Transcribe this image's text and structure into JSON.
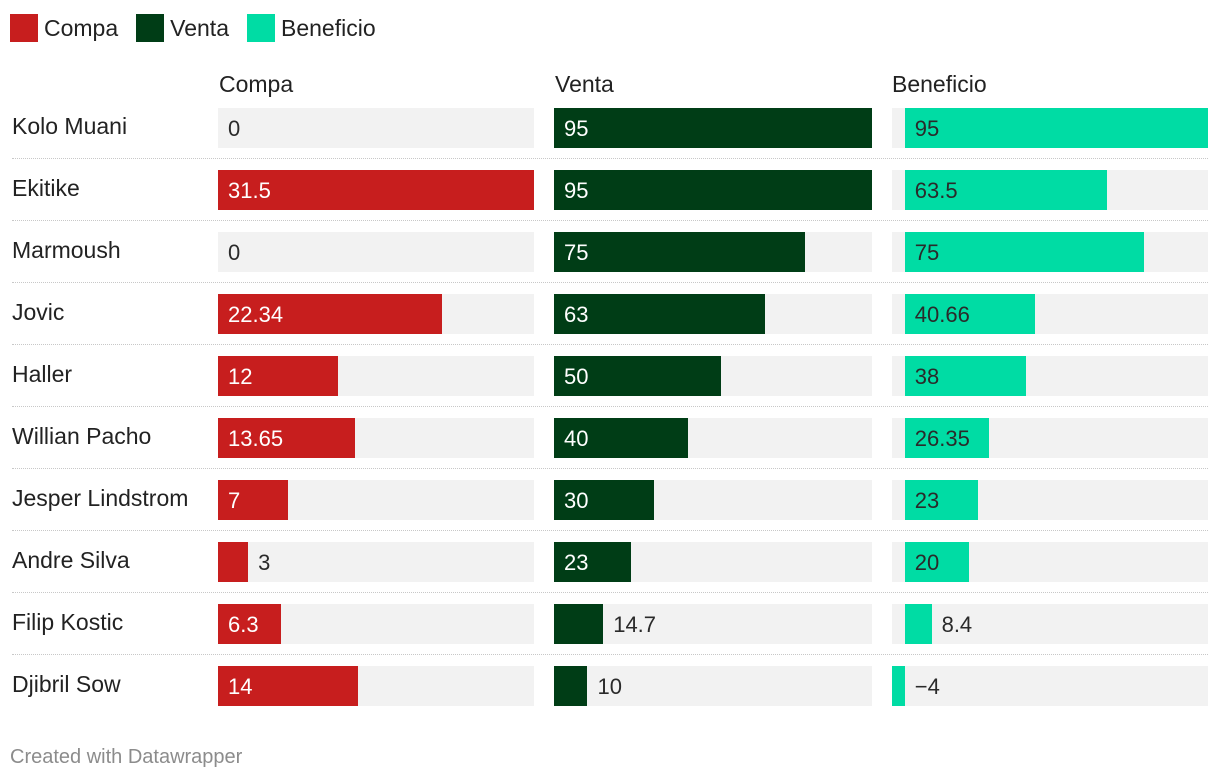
{
  "colors": {
    "compa": "#c71e1e",
    "venta": "#003d16",
    "beneficio": "#00dca4",
    "track": "#f2f2f2"
  },
  "legend": [
    {
      "label": "Compa",
      "color": "#c71e1e"
    },
    {
      "label": "Venta",
      "color": "#003d16"
    },
    {
      "label": "Beneficio",
      "color": "#00dca4"
    }
  ],
  "chart_data": {
    "type": "bar",
    "title": "",
    "categories": [
      "Kolo Muani",
      "Ekitike",
      "Marmoush",
      "Jovic",
      "Haller",
      "Willian Pacho",
      "Jesper Lindstrom",
      "Andre Silva",
      "Filip Kostic",
      "Djibril Sow"
    ],
    "series": [
      {
        "name": "Compa",
        "values": [
          0,
          31.5,
          0,
          22.34,
          12,
          13.65,
          7,
          3,
          6.3,
          14
        ],
        "labels": [
          "0",
          "31.5",
          "0",
          "22.34",
          "12",
          "13.65",
          "7",
          "3",
          "6.3",
          "14"
        ],
        "ylim": [
          0,
          31.5
        ]
      },
      {
        "name": "Venta",
        "values": [
          95,
          95,
          75,
          63,
          50,
          40,
          30,
          23,
          14.7,
          10
        ],
        "labels": [
          "95",
          "95",
          "75",
          "63",
          "50",
          "40",
          "30",
          "23",
          "14.7",
          "10"
        ],
        "ylim": [
          0,
          95
        ]
      },
      {
        "name": "Beneficio",
        "values": [
          95,
          63.5,
          75,
          40.66,
          38,
          26.35,
          23,
          20,
          8.4,
          -4
        ],
        "labels": [
          "95",
          "63.5",
          "75",
          "40.66",
          "38",
          "26.35",
          "23",
          "20",
          "8.4",
          "−4"
        ],
        "ylim": [
          -4,
          95
        ]
      }
    ]
  },
  "footer": {
    "credit": "Created with Datawrapper"
  }
}
